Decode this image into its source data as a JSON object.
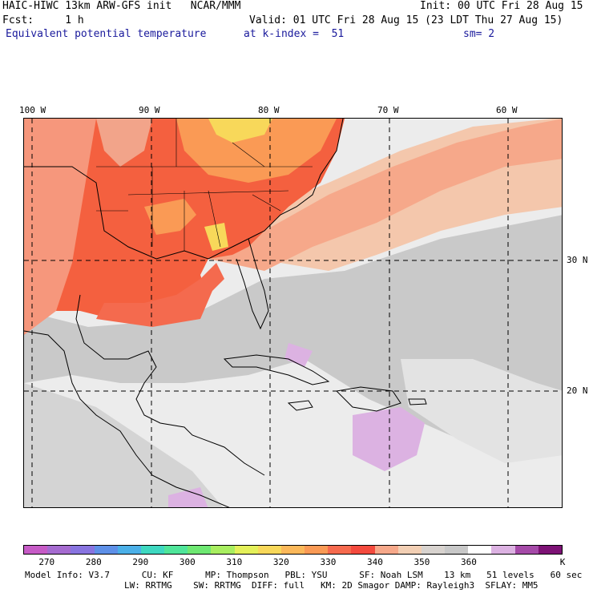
{
  "header": {
    "model_line": "HAIC-HIWC 13km ARW-GFS init   NCAR/MMM",
    "init": "Init: 00 UTC Fri 28 Aug 15",
    "fcst": "Fcst:     1 h",
    "valid": "Valid: 01 UTC Fri 28 Aug 15 (23 LDT Thu 27 Aug 15)",
    "field": "Equivalent potential temperature",
    "level": "at k-index =  51",
    "smoothing": "sm= 2"
  },
  "map": {
    "longitude_labels": [
      "100 W",
      "90 W",
      "80 W",
      "70 W",
      "60 W"
    ],
    "latitude_labels": [
      "30 N",
      "20 N"
    ]
  },
  "colorbar": {
    "colors": [
      "#c65bc6",
      "#a56bd0",
      "#8874e0",
      "#5e90e8",
      "#4bb0e8",
      "#3ed8c0",
      "#4fe59a",
      "#6ee872",
      "#a8ee60",
      "#e4f05a",
      "#f8d85a",
      "#fbb85a",
      "#fa9a55",
      "#f66a4e",
      "#f44a3e",
      "#f6a88a",
      "#f2cfb4",
      "#d8d3cf",
      "#c8c8c8",
      "#ffffff",
      "#dcb2e2",
      "#a54aa8",
      "#7d1275"
    ],
    "tick_labels": [
      "270",
      "280",
      "290",
      "300",
      "310",
      "320",
      "330",
      "340",
      "350",
      "360"
    ],
    "unit": "K"
  },
  "footer": {
    "line1": "Model Info: V3.7      CU: KF      MP: Thompson   PBL: YSU      SF: Noah LSM    13 km   51 levels   60 sec",
    "line2": "LW: RRTMG    SW: RRTMG  DIFF: full   KM: 2D Smagor DAMP: Rayleigh3  SFLAY: MM5"
  }
}
